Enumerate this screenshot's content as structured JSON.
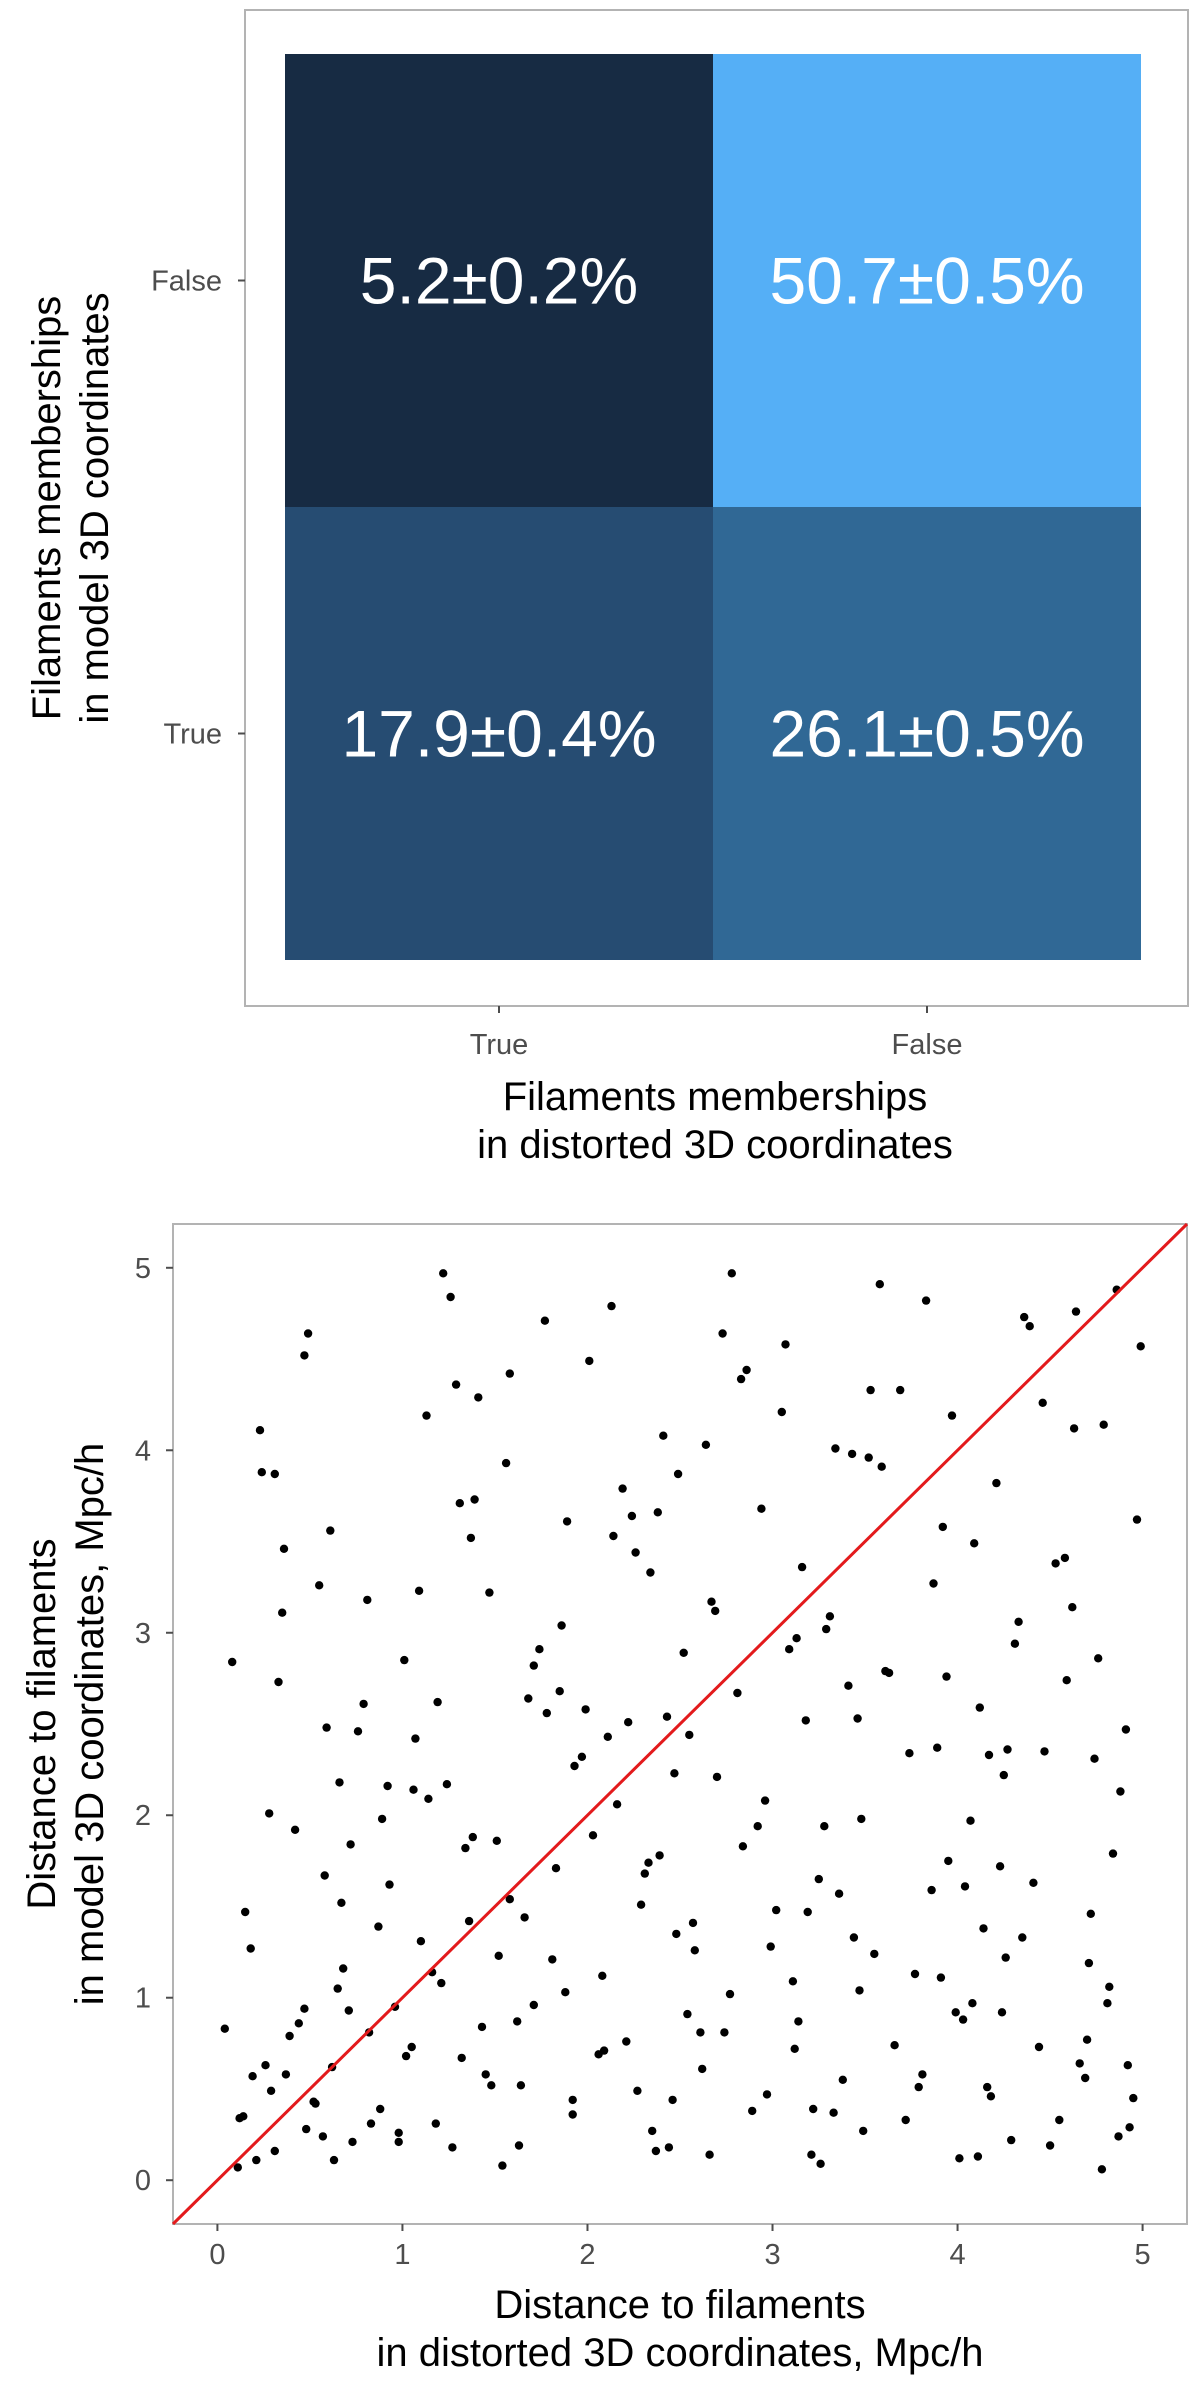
{
  "chart_data": [
    {
      "type": "heatmap",
      "x_categories": [
        "True",
        "False"
      ],
      "y_categories": [
        "False",
        "True"
      ],
      "cells": [
        {
          "x": "True",
          "y": "False",
          "value": 5.2,
          "error": 0.2,
          "label": "5.2±0.2%",
          "color": "#172b43"
        },
        {
          "x": "False",
          "y": "False",
          "value": 50.7,
          "error": 0.5,
          "label": "50.7±0.5%",
          "color": "#55aff6"
        },
        {
          "x": "True",
          "y": "True",
          "value": 17.9,
          "error": 0.4,
          "label": "17.9±0.4%",
          "color": "#264c72"
        },
        {
          "x": "False",
          "y": "True",
          "value": 26.1,
          "error": 0.5,
          "label": "26.1±0.5%",
          "color": "#306895"
        }
      ],
      "xlabel": [
        "Filaments memberships",
        "in distorted 3D coordinates"
      ],
      "ylabel": [
        "Filaments memberships",
        "in model 3D coordinates"
      ],
      "grid": false
    },
    {
      "type": "scatter",
      "xlabel": [
        "Distance to filaments",
        "in distorted 3D coordinates, Mpc/h"
      ],
      "ylabel": [
        "Distance to filaments",
        "in model 3D coordinates, Mpc/h"
      ],
      "xlim": [
        -0.24,
        5.24
      ],
      "ylim": [
        -0.24,
        5.24
      ],
      "x_ticks": [
        0,
        1,
        2,
        3,
        4,
        5
      ],
      "y_ticks": [
        0,
        1,
        2,
        3,
        4,
        5
      ],
      "grid": false,
      "point_color": "#000000",
      "reference_line": {
        "label": "y = x",
        "from": [
          -0.24,
          -0.24
        ],
        "to": [
          5.24,
          5.24
        ],
        "color": "#e31a1c"
      },
      "points": {
        "x": [
          0.11,
          0.31,
          0.48,
          0.73,
          0.52,
          0.14,
          0.37,
          0.62,
          0.88,
          1.05,
          0.21,
          0.44,
          0.96,
          1.18,
          1.32,
          1.21,
          0.68,
          0.29,
          1.43,
          1.52,
          1.64,
          1.1,
          0.82,
          0.57,
          1.36,
          1.71,
          1.58,
          0.93,
          1.27,
          0.04,
          0.19,
          0.65,
          1.92,
          2.08,
          1.83,
          2.21,
          2.35,
          2.48,
          2.03,
          2.62,
          2.77,
          2.16,
          1.97,
          2.89,
          3.02,
          2.54,
          3.21,
          2.31,
          3.38,
          2.7,
          3.55,
          3.12,
          2.43,
          3.72,
          3.86,
          2.96,
          4.03,
          3.47,
          4.18,
          3.63,
          4.35,
          4.5,
          3.95,
          4.66,
          4.81,
          4.27,
          4.93,
          4.72,
          3.31,
          4.12,
          2.84,
          3.79,
          4.58,
          4.88,
          0.15,
          0.42,
          0.76,
          1.01,
          1.24,
          1.47,
          0.33,
          0.61,
          0.89,
          1.68,
          1.86,
          2.11,
          0.24,
          0.55,
          1.13,
          1.39,
          0.08,
          0.47,
          0.79,
          1.29,
          1.56,
          2.26,
          2.52,
          1.77,
          2.41,
          2.67,
          2.94,
          3.18,
          3.43,
          3.69,
          3.94,
          4.21,
          4.46,
          4.74,
          4.97,
          3.07,
          3.58,
          4.09,
          4.62,
          2.13,
          2.38,
          2.86,
          3.34,
          3.83,
          4.31,
          4.79,
          0.26,
          0.53,
          0.98,
          1.45,
          1.92,
          2.44,
          2.97,
          3.49,
          4.01,
          4.55,
          0.39,
          0.71,
          1.16,
          1.62,
          2.06,
          2.58,
          3.11,
          3.66,
          4.14,
          4.69,
          0.18,
          0.87,
          1.34,
          1.81,
          2.29,
          2.74,
          3.25,
          3.77,
          4.24,
          4.84,
          0.28,
          0.66,
          1.07,
          1.51,
          1.99,
          2.47,
          2.92,
          3.41,
          3.89,
          4.41,
          4.91,
          0.59,
          1.19,
          1.74,
          2.34,
          2.81,
          3.29,
          3.74,
          4.23,
          4.76,
          0.35,
          0.81,
          1.37,
          1.89,
          2.19,
          2.64,
          3.16,
          3.61,
          4.07,
          4.53,
          4.99,
          1.58,
          2.49,
          3.05,
          3.52,
          4.39,
          4.86,
          1.22,
          2.73,
          3.97,
          4.64,
          0.47,
          1.02,
          1.66,
          2.27,
          3.36,
          3.91,
          4.44,
          0.72,
          1.93,
          2.57,
          3.14,
          4.17,
          4.71,
          0.12,
          0.98,
          1.48,
          2.09,
          2.66,
          3.22,
          3.81,
          4.29,
          4.95,
          0.58,
          1.14,
          1.78,
          2.33,
          2.99,
          3.48,
          4.08,
          4.59,
          0.36,
          1.31,
          2.24,
          3.09,
          3.87,
          4.47,
          0.92,
          1.71,
          2.55,
          3.28,
          4.04,
          4.82,
          0.23,
          1.41,
          2.14,
          2.83,
          3.59,
          4.33,
          0.67,
          1.88,
          2.61,
          3.44,
          4.26,
          4.92,
          1.06,
          2.39,
          3.19,
          3.99,
          4.7,
          0.49,
          1.26,
          2.01,
          2.78,
          3.53,
          4.36,
          0.83,
          1.63,
          2.46,
          3.33,
          4.16,
          4.87,
          0.31,
          1.09,
          1.85,
          2.69,
          3.46,
          4.25,
          0.63,
          1.54,
          2.37,
          3.26,
          4.11,
          4.78,
          1.38,
          2.22,
          3.13,
          3.92,
          4.63
        ],
        "y": [
          0.07,
          0.16,
          0.28,
          0.21,
          0.43,
          0.35,
          0.58,
          0.62,
          0.39,
          0.73,
          0.11,
          0.86,
          0.95,
          0.31,
          0.67,
          1.08,
          1.16,
          0.49,
          0.84,
          1.23,
          0.52,
          1.31,
          0.81,
          0.24,
          1.42,
          0.96,
          1.54,
          1.62,
          0.18,
          0.83,
          0.57,
          1.05,
          0.44,
          1.12,
          1.71,
          0.76,
          0.27,
          1.35,
          1.89,
          0.61,
          1.02,
          2.06,
          2.32,
          0.38,
          1.48,
          0.91,
          0.14,
          1.68,
          0.55,
          2.21,
          1.24,
          0.72,
          2.54,
          0.33,
          1.59,
          2.08,
          0.88,
          1.04,
          0.46,
          2.78,
          1.33,
          0.19,
          1.75,
          0.64,
          0.97,
          2.36,
          0.29,
          1.46,
          3.09,
          2.59,
          1.83,
          0.51,
          3.41,
          2.13,
          1.47,
          1.92,
          2.46,
          2.85,
          2.17,
          3.22,
          2.73,
          3.56,
          1.98,
          2.64,
          3.04,
          2.43,
          3.88,
          3.26,
          4.19,
          3.73,
          2.84,
          4.52,
          2.61,
          4.36,
          3.93,
          3.44,
          2.89,
          4.71,
          4.08,
          3.17,
          3.68,
          2.52,
          3.98,
          4.33,
          2.76,
          3.82,
          4.26,
          2.31,
          3.62,
          4.58,
          4.91,
          3.49,
          3.14,
          4.79,
          3.66,
          4.44,
          4.01,
          4.82,
          2.94,
          4.14,
          0.63,
          0.42,
          0.21,
          0.58,
          0.36,
          0.18,
          0.47,
          0.27,
          0.12,
          0.33,
          0.79,
          0.93,
          1.14,
          0.87,
          0.69,
          1.26,
          1.09,
          0.74,
          1.38,
          0.56,
          1.27,
          1.39,
          1.82,
          1.21,
          1.51,
          0.81,
          1.65,
          1.13,
          0.92,
          1.79,
          2.01,
          2.18,
          2.42,
          1.86,
          2.58,
          2.23,
          1.94,
          2.71,
          2.37,
          1.63,
          2.47,
          2.48,
          2.62,
          2.91,
          3.33,
          2.67,
          3.02,
          2.34,
          1.72,
          2.86,
          3.11,
          3.18,
          3.52,
          3.61,
          3.79,
          4.03,
          3.36,
          2.79,
          1.97,
          3.38,
          4.57,
          4.42,
          3.87,
          4.21,
          3.96,
          4.68,
          4.88,
          4.97,
          4.64,
          4.19,
          4.76,
          0.94,
          0.68,
          1.44,
          0.49,
          1.57,
          1.11,
          0.73,
          1.84,
          2.27,
          1.41,
          0.87,
          2.33,
          1.19,
          0.34,
          0.26,
          0.52,
          0.71,
          0.14,
          0.39,
          0.58,
          0.22,
          0.45,
          1.67,
          2.09,
          2.56,
          1.74,
          1.28,
          1.98,
          0.97,
          2.74,
          3.46,
          3.71,
          3.64,
          2.91,
          3.27,
          2.35,
          2.16,
          2.82,
          2.44,
          1.94,
          1.61,
          1.06,
          4.11,
          4.29,
          3.53,
          4.39,
          3.91,
          3.06,
          1.52,
          1.03,
          0.81,
          1.33,
          1.22,
          0.63,
          2.14,
          1.78,
          1.47,
          0.92,
          0.77,
          4.64,
          4.84,
          4.49,
          4.97,
          4.33,
          4.73,
          0.31,
          0.19,
          0.44,
          0.37,
          0.51,
          0.24,
          3.87,
          3.23,
          2.68,
          3.12,
          2.53,
          2.22,
          0.11,
          0.08,
          0.16,
          0.09,
          0.13,
          0.06,
          1.88,
          2.51,
          2.97,
          3.58,
          4.12
        ]
      }
    }
  ]
}
